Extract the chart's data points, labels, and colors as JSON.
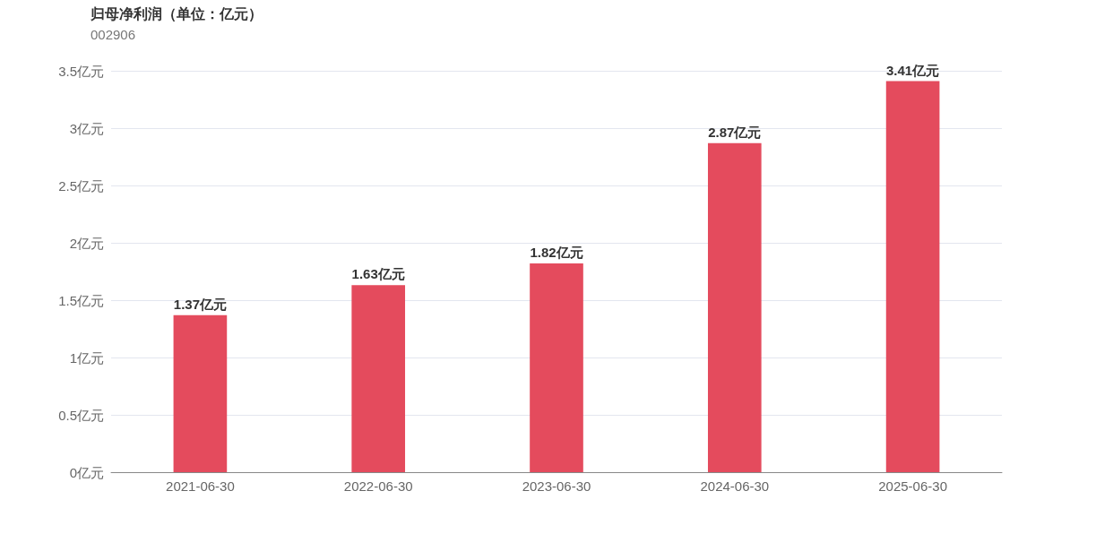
{
  "chart_data": {
    "type": "bar",
    "title": "归母净利润（单位：亿元）",
    "subtitle": "002906",
    "categories": [
      "2021-06-30",
      "2022-06-30",
      "2023-06-30",
      "2024-06-30",
      "2025-06-30"
    ],
    "values": [
      1.37,
      1.63,
      1.82,
      2.87,
      3.41
    ],
    "value_labels": [
      "1.37亿元",
      "1.63亿元",
      "1.82亿元",
      "2.87亿元",
      "3.41亿元"
    ],
    "color": "#e44b5d",
    "ylim": [
      0,
      3.5
    ],
    "yticks": [
      {
        "value": 0,
        "label": "0亿元"
      },
      {
        "value": 0.5,
        "label": "0.5亿元"
      },
      {
        "value": 1,
        "label": "1亿元"
      },
      {
        "value": 1.5,
        "label": "1.5亿元"
      },
      {
        "value": 2,
        "label": "2亿元"
      },
      {
        "value": 2.5,
        "label": "2.5亿元"
      },
      {
        "value": 3,
        "label": "3亿元"
      },
      {
        "value": 3.5,
        "label": "3.5亿元"
      }
    ],
    "grid": "y"
  }
}
